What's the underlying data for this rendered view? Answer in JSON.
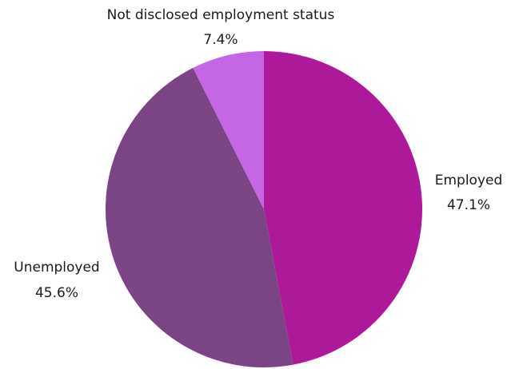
{
  "chart_data": {
    "type": "pie",
    "title": "",
    "slices": [
      {
        "label": "Employed",
        "value": 47.1,
        "value_label": "47.1%",
        "color": "#ad1a99"
      },
      {
        "label": "Unemployed",
        "value": 45.6,
        "value_label": "45.6%",
        "color": "#7b4485"
      },
      {
        "label": "Not disclosed employment status",
        "value": 7.4,
        "value_label": "7.4%",
        "color": "#c566e4"
      }
    ],
    "start_angle": "12 o'clock",
    "direction": "clockwise",
    "legend": "none",
    "labels": "outside"
  }
}
